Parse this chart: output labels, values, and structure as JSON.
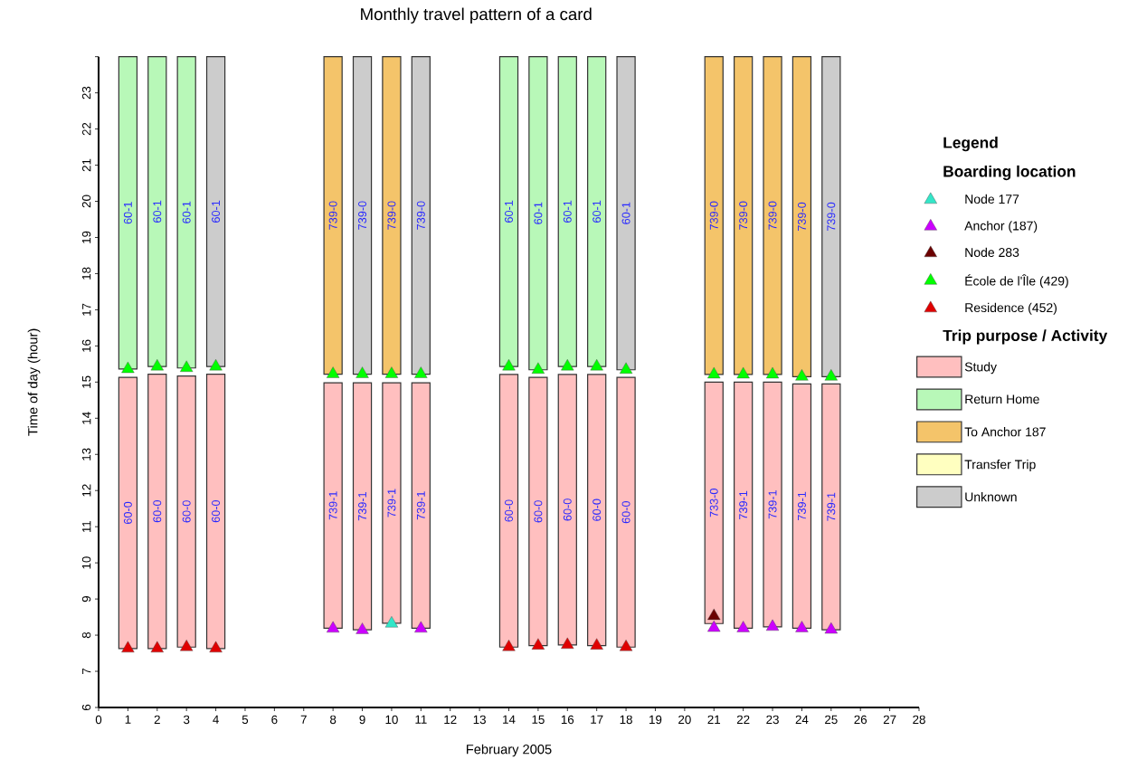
{
  "chart_data": {
    "type": "bar",
    "title": "Monthly travel pattern of a card",
    "xlabel": "February 2005",
    "ylabel": "Time of day (hour)",
    "legend_title": "Legend",
    "annotations": [
      "Boarding location",
      "Trip purpose / Activity"
    ],
    "legend": "right",
    "xlim": [
      0,
      28
    ],
    "xticks": [
      0,
      1,
      2,
      3,
      4,
      5,
      6,
      7,
      8,
      9,
      10,
      11,
      12,
      13,
      14,
      15,
      16,
      17,
      18,
      19,
      20,
      21,
      22,
      23,
      24,
      25,
      26,
      27,
      28
    ],
    "ylim": [
      6,
      24
    ],
    "yticks": [
      6,
      7,
      8,
      9,
      10,
      11,
      12,
      13,
      14,
      15,
      16,
      17,
      18,
      19,
      20,
      21,
      22,
      23,
      {
        "value": 24,
        "label": null
      }
    ],
    "series": [
      {
        "name": "Node 177",
        "type": "scatter",
        "marker": "triangle",
        "color": "#33e6c8",
        "x": [
          10
        ],
        "values": [
          8.32
        ]
      },
      {
        "name": "Anchor (187)",
        "type": "scatter",
        "marker": "triangle",
        "color": "#cc00ff",
        "x": [
          8,
          9,
          11,
          21,
          22,
          23,
          24,
          25
        ],
        "values": [
          8.18,
          8.14,
          8.18,
          8.2,
          8.19,
          8.23,
          8.19,
          8.15
        ]
      },
      {
        "name": "Node 283",
        "type": "scatter",
        "marker": "triangle",
        "color": "#6b0000",
        "x": [
          21
        ],
        "values": [
          8.53
        ]
      },
      {
        "name": "École de l'Île (429)",
        "type": "scatter",
        "marker": "triangle",
        "color": "#00ff00",
        "x": [
          1,
          2,
          3,
          4,
          8,
          9,
          10,
          11,
          14,
          15,
          16,
          17,
          18,
          21,
          22,
          23,
          24,
          25
        ],
        "values": [
          15.36,
          15.43,
          15.39,
          15.43,
          15.22,
          15.22,
          15.22,
          15.22,
          15.43,
          15.34,
          15.43,
          15.43,
          15.34,
          15.21,
          15.21,
          15.21,
          15.15,
          15.15
        ]
      },
      {
        "name": "Residence (452)",
        "type": "scatter",
        "marker": "triangle",
        "color": "#e00000",
        "x": [
          1,
          2,
          3,
          4,
          14,
          15,
          16,
          17,
          18
        ],
        "values": [
          7.63,
          7.63,
          7.67,
          7.63,
          7.67,
          7.71,
          7.73,
          7.71,
          7.67
        ]
      },
      {
        "name": "Study",
        "color": "#ffbfbf",
        "x": [
          1,
          2,
          3,
          4,
          8,
          9,
          10,
          11,
          14,
          15,
          16,
          17,
          18,
          21,
          22,
          23,
          24,
          25
        ],
        "base": [
          7.63,
          7.63,
          7.67,
          7.63,
          8.19,
          8.15,
          8.33,
          8.19,
          7.67,
          7.71,
          7.73,
          7.71,
          7.67,
          8.32,
          8.19,
          8.23,
          8.19,
          8.15
        ],
        "values": [
          7.5,
          7.59,
          7.5,
          7.59,
          6.79,
          6.83,
          6.65,
          6.79,
          7.54,
          7.42,
          7.48,
          7.5,
          7.46,
          6.68,
          6.81,
          6.77,
          6.76,
          6.8
        ],
        "value_labels": [
          "60-0",
          "60-0",
          "60-0",
          "60-0",
          "739-1",
          "739-1",
          "739-1",
          "739-1",
          "60-0",
          "60-0",
          "60-0",
          "60-0",
          "60-0",
          "733-0",
          "739-1",
          "739-1",
          "739-1",
          "739-1"
        ]
      },
      {
        "name": "Return Home",
        "color": "#b8f8b8",
        "x": [
          1,
          2,
          3,
          14,
          15,
          16,
          17
        ],
        "base": [
          15.36,
          15.43,
          15.39,
          15.43,
          15.34,
          15.43,
          15.43
        ],
        "values": [
          8.64,
          8.57,
          8.61,
          8.57,
          8.66,
          8.57,
          8.57
        ],
        "value_labels": [
          "60-1",
          "60-1",
          "60-1",
          "60-1",
          "60-1",
          "60-1",
          "60-1"
        ]
      },
      {
        "name": "To Anchor 187",
        "color": "#f4c46a",
        "x": [
          8,
          10,
          21,
          22,
          23,
          24
        ],
        "base": [
          15.22,
          15.22,
          15.21,
          15.21,
          15.21,
          15.15
        ],
        "values": [
          8.78,
          8.78,
          8.79,
          8.79,
          8.79,
          8.85
        ],
        "value_labels": [
          "739-0",
          "739-0",
          "739-0",
          "739-0",
          "739-0",
          "739-0"
        ]
      },
      {
        "name": "Transfer Trip",
        "color": "#ffffc0"
      },
      {
        "name": "Unknown",
        "color": "#cccccc",
        "x": [
          4,
          9,
          11,
          18,
          25
        ],
        "base": [
          15.43,
          15.22,
          15.22,
          15.34,
          15.15
        ],
        "values": [
          8.57,
          8.78,
          8.78,
          8.66,
          8.85
        ],
        "value_labels": [
          "60-1",
          "739-0",
          "739-0",
          "60-1",
          "739-0"
        ]
      }
    ]
  }
}
